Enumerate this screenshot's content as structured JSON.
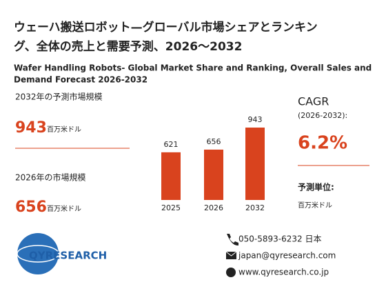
{
  "title": {
    "line1": "ウェーハ搬送ロボット—グローバル市場シェアとランキン",
    "line2": "グ、全体の売上と需要予測、2026～2032"
  },
  "subtitle": {
    "line1": "Wafer Handling Robots- Global Market Share and Ranking, Overall Sales and",
    "line2": "Demand Forecast 2026-2032"
  },
  "left": {
    "label_2032": "2032年の予測市場規模",
    "value_2032": "943",
    "unit_2032": "百万米ドル",
    "label_2026": "2026年の市場規模",
    "value_2026": "656",
    "unit_2026": "百万米ドル"
  },
  "chart_data": {
    "type": "bar",
    "categories": [
      "2025",
      "2026",
      "2032"
    ],
    "values": [
      621,
      656,
      943
    ],
    "color": "#d9431e"
  },
  "right": {
    "cagr": "CAGR",
    "period": "(2026-2032):",
    "cagr_value": "6.2%",
    "unit_label": "予測単位:",
    "unit": "百万米ドル"
  },
  "logo": {
    "text": "QYRESEARCH"
  },
  "contact": {
    "phone": "050-5893-6232 日本",
    "email": "japan@qyresearch.com",
    "web": "www.qyresearch.co.jp"
  }
}
